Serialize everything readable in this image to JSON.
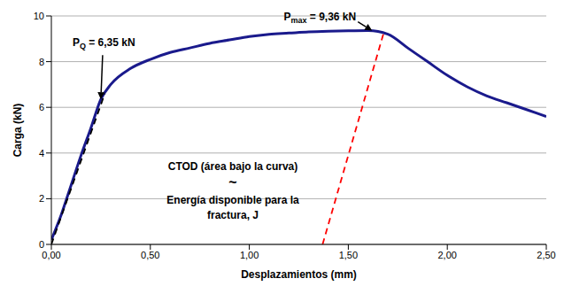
{
  "chart_data": {
    "type": "line",
    "xlabel": "Desplazamientos (mm)",
    "ylabel": "Carga (kN)",
    "xlim": [
      0,
      2.5
    ],
    "ylim": [
      0,
      10
    ],
    "xticks": [
      {
        "value": 0,
        "label": "0,00"
      },
      {
        "value": 0.5,
        "label": "0,50"
      },
      {
        "value": 1,
        "label": "1,00"
      },
      {
        "value": 1.5,
        "label": "1,50"
      },
      {
        "value": 2,
        "label": "2,00"
      },
      {
        "value": 2.5,
        "label": "2,50"
      }
    ],
    "yticks": [
      0,
      2,
      4,
      6,
      8,
      10
    ],
    "grid": true,
    "series": [
      {
        "color": "#1a1a8c",
        "line_style": "solid",
        "marker": "none",
        "x": [
          0,
          0.05,
          0.1,
          0.15,
          0.2,
          0.25,
          0.3,
          0.4,
          0.5,
          0.6,
          0.7,
          0.8,
          0.9,
          1.0,
          1.1,
          1.2,
          1.3,
          1.4,
          1.5,
          1.6,
          1.7,
          1.8,
          1.9,
          2.0,
          2.1,
          2.2,
          2.3,
          2.4,
          2.5
        ],
        "values": [
          0.2,
          1.3,
          2.6,
          3.9,
          5.1,
          6.35,
          7.0,
          7.7,
          8.1,
          8.4,
          8.6,
          8.8,
          8.95,
          9.1,
          9.2,
          9.25,
          9.3,
          9.33,
          9.35,
          9.36,
          9.2,
          8.6,
          8.0,
          7.4,
          6.9,
          6.5,
          6.2,
          5.9,
          5.6
        ]
      },
      {
        "color": "#000000",
        "line_style": "dashed",
        "marker": "none",
        "x": [
          0,
          0.27
        ],
        "values": [
          0,
          6.6
        ]
      },
      {
        "color": "#ff0000",
        "line_style": "dashed",
        "marker": "none",
        "x": [
          1.37,
          1.68
        ],
        "values": [
          0,
          9.3
        ]
      }
    ],
    "annotations": [
      {
        "symbol": "P",
        "subscript": "Q",
        "text": " = 6,35 kN",
        "x": 0.25,
        "y": 6.35
      },
      {
        "symbol": "P",
        "subscript": "max",
        "text": " = 9,36 kN",
        "x": 1.62,
        "y": 9.36
      }
    ],
    "notes": [
      "CTOD (área bajo la curva)",
      "~",
      "Energía disponible para la",
      "fractura, J"
    ]
  }
}
